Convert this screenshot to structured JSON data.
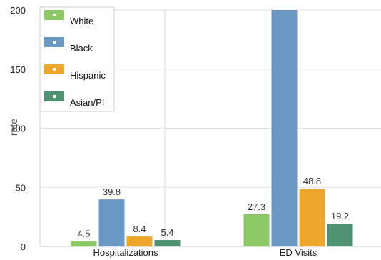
{
  "chart_data": {
    "type": "bar",
    "categories": [
      "Hospitalizations",
      "ED Visits"
    ],
    "series": [
      {
        "name": "White",
        "color": "#8cc863",
        "values": [
          4.5,
          27.3
        ],
        "labels": [
          "4.5",
          "27.3"
        ]
      },
      {
        "name": "Black",
        "color": "#6a98c4",
        "values": [
          39.8,
          200
        ],
        "labels": [
          "39.8",
          ""
        ]
      },
      {
        "name": "Hispanic",
        "color": "#eea52c",
        "values": [
          8.4,
          48.8
        ],
        "labels": [
          "8.4",
          "48.8"
        ]
      },
      {
        "name": "Asian/PI",
        "color": "#4e9271",
        "values": [
          5.4,
          19.2
        ],
        "labels": [
          "5.4",
          "19.2"
        ]
      }
    ],
    "ylabel": "rate",
    "ylim": [
      0,
      200
    ],
    "yticks": [
      0,
      50,
      100,
      150,
      200
    ],
    "ytick_labels": [
      "0",
      "50",
      "100",
      "150",
      "200"
    ],
    "grid": true,
    "legend_position": "top-left"
  }
}
